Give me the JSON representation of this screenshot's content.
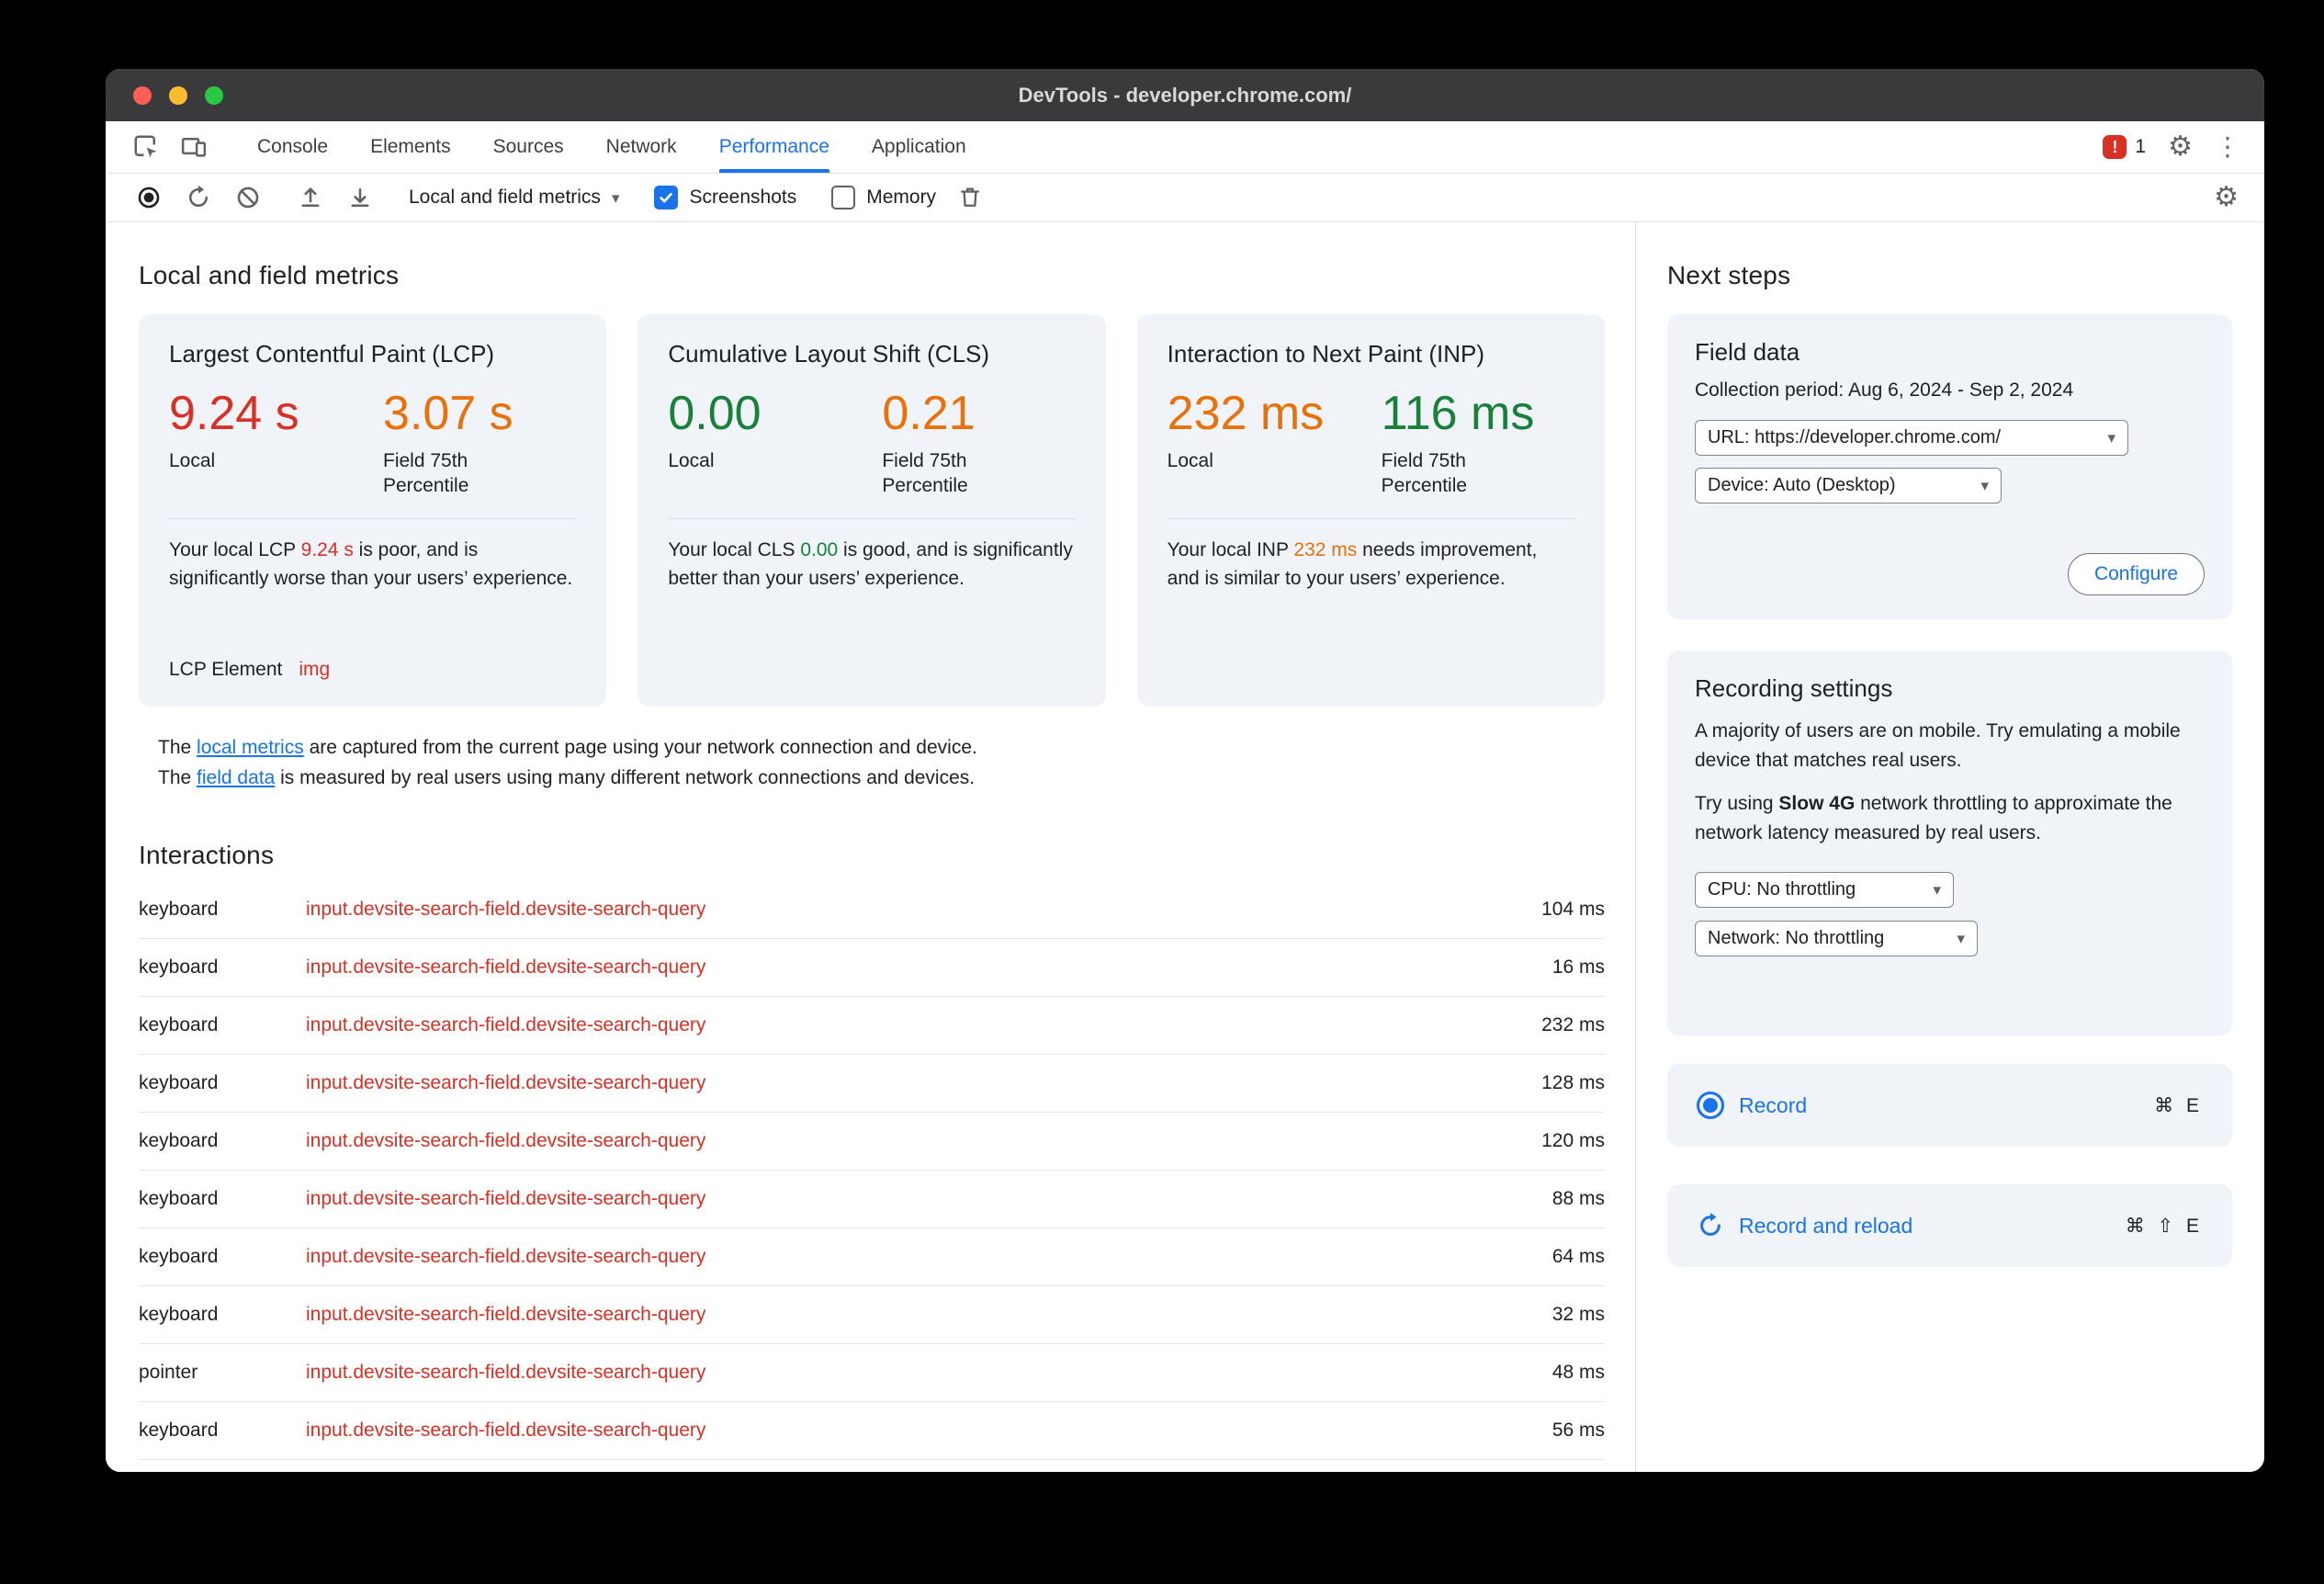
{
  "window": {
    "title": "DevTools - developer.chrome.com/"
  },
  "tabbar": {
    "tabs": [
      "Console",
      "Elements",
      "Sources",
      "Network",
      "Performance",
      "Application"
    ],
    "active_tab": "Performance",
    "error_count": "1"
  },
  "toolbar": {
    "view_select": "Local and field metrics",
    "screenshots_label": "Screenshots",
    "memory_label": "Memory"
  },
  "main": {
    "heading": "Local and field metrics",
    "cards": [
      {
        "title": "Largest Contentful Paint (LCP)",
        "local_value": "9.24 s",
        "local_label": "Local",
        "local_status": "poor",
        "field_value": "3.07 s",
        "field_label": "Field 75th Percentile",
        "field_status": "needs-improvement",
        "desc_prefix": "Your local LCP ",
        "desc_value": "9.24 s",
        "desc_suffix": " is poor, and is significantly worse than your users’ experience.",
        "extra_label": "LCP Element",
        "extra_value": "img"
      },
      {
        "title": "Cumulative Layout Shift (CLS)",
        "local_value": "0.00",
        "local_label": "Local",
        "local_status": "good",
        "field_value": "0.21",
        "field_label": "Field 75th Percentile",
        "field_status": "needs-improvement",
        "desc_prefix": "Your local CLS ",
        "desc_value": "0.00",
        "desc_suffix": " is good, and is significantly better than your users’ experience."
      },
      {
        "title": "Interaction to Next Paint (INP)",
        "local_value": "232 ms",
        "local_label": "Local",
        "local_status": "needs-improvement",
        "field_value": "116 ms",
        "field_label": "Field 75th Percentile",
        "field_status": "good",
        "desc_prefix": "Your local INP ",
        "desc_value": "232 ms",
        "desc_suffix": " needs improvement, and is similar to your users’ experience."
      }
    ],
    "note": {
      "line1_pre": "The ",
      "line1_link": "local metrics",
      "line1_post": " are captured from the current page using your network connection and device.",
      "line2_pre": "The ",
      "line2_link": "field data",
      "line2_post": " is measured by real users using many different network connections and devices."
    },
    "interactions": {
      "heading": "Interactions",
      "rows": [
        {
          "type": "keyboard",
          "selector": "input.devsite-search-field.devsite-search-query",
          "duration": "104 ms"
        },
        {
          "type": "keyboard",
          "selector": "input.devsite-search-field.devsite-search-query",
          "duration": "16 ms"
        },
        {
          "type": "keyboard",
          "selector": "input.devsite-search-field.devsite-search-query",
          "duration": "232 ms"
        },
        {
          "type": "keyboard",
          "selector": "input.devsite-search-field.devsite-search-query",
          "duration": "128 ms"
        },
        {
          "type": "keyboard",
          "selector": "input.devsite-search-field.devsite-search-query",
          "duration": "120 ms"
        },
        {
          "type": "keyboard",
          "selector": "input.devsite-search-field.devsite-search-query",
          "duration": "88 ms"
        },
        {
          "type": "keyboard",
          "selector": "input.devsite-search-field.devsite-search-query",
          "duration": "64 ms"
        },
        {
          "type": "keyboard",
          "selector": "input.devsite-search-field.devsite-search-query",
          "duration": "32 ms"
        },
        {
          "type": "pointer",
          "selector": "input.devsite-search-field.devsite-search-query",
          "duration": "48 ms"
        },
        {
          "type": "keyboard",
          "selector": "input.devsite-search-field.devsite-search-query",
          "duration": "56 ms"
        }
      ]
    }
  },
  "sidebar": {
    "heading": "Next steps",
    "field_data": {
      "title": "Field data",
      "collection_label": "Collection period:",
      "collection_value": "Aug 6, 2024 - Sep 2, 2024",
      "url_select": "URL: https://developer.chrome.com/",
      "device_select": "Device: Auto (Desktop)",
      "configure_label": "Configure"
    },
    "recording": {
      "title": "Recording settings",
      "p1": "A majority of users are on mobile. Try emulating a mobile device that matches real users.",
      "p2_pre": "Try using ",
      "p2_bold": "Slow 4G",
      "p2_post": " network throttling to approximate the network latency measured by real users.",
      "cpu_select": "CPU: No throttling",
      "network_select": "Network: No throttling"
    },
    "record": {
      "label": "Record",
      "shortcut": "⌘ E"
    },
    "record_reload": {
      "label": "Record and reload",
      "shortcut": "⌘ ⇧ E"
    }
  },
  "colors": {
    "poor": "#d93025",
    "needs_improvement": "#e8710a",
    "good": "#188038",
    "accent": "#1a73e8"
  }
}
